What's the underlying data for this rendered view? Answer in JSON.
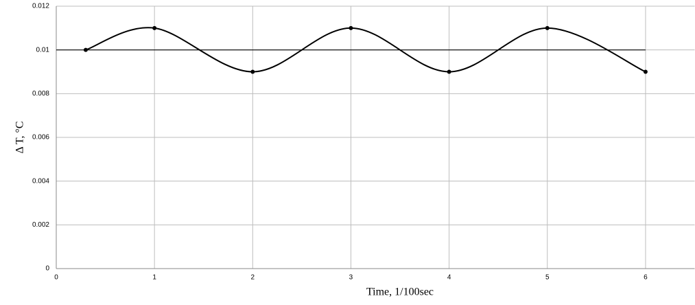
{
  "chart_data": {
    "type": "line",
    "x_label": "Time, 1/100sec",
    "y_label": "Δ T, °C",
    "xlim": [
      0,
      6.5
    ],
    "xticks": [
      0,
      1,
      2,
      3,
      4,
      5,
      6
    ],
    "ylim": [
      0,
      0.012
    ],
    "yticks": [
      0,
      0.002,
      0.004,
      0.006,
      0.008,
      0.01,
      0.012
    ],
    "grid": true,
    "series": [
      {
        "x": [
          0.3,
          1,
          2,
          3,
          4,
          5,
          6
        ],
        "values": [
          0.01,
          0.011,
          0.009,
          0.011,
          0.009,
          0.011,
          0.009
        ],
        "color": "#000000",
        "smooth": true,
        "markers": true
      },
      {
        "x": [
          0,
          6
        ],
        "values": [
          0.01,
          0.01
        ],
        "color": "#000000",
        "smooth": false,
        "markers": false
      }
    ]
  }
}
